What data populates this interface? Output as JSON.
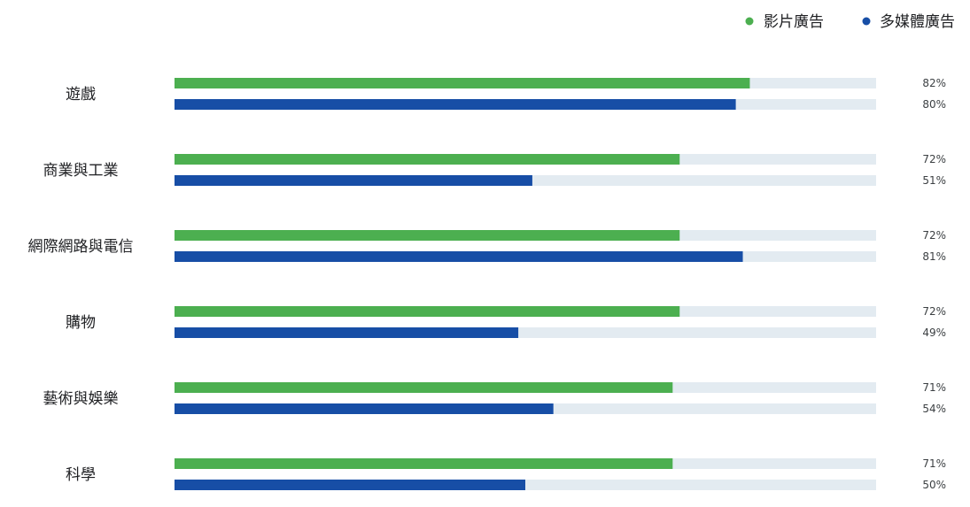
{
  "chart_data": {
    "type": "bar",
    "orientation": "horizontal",
    "categories": [
      "遊戲",
      "商業與工業",
      "網際網路與電信",
      "購物",
      "藝術與娛樂",
      "科學"
    ],
    "series": [
      {
        "name": "影片廣告",
        "color": "#4caf50",
        "values": [
          82,
          72,
          72,
          72,
          71,
          71
        ]
      },
      {
        "name": "多媒體廣告",
        "color": "#174ea6",
        "values": [
          80,
          51,
          81,
          49,
          54,
          50
        ]
      }
    ],
    "value_labels": [
      [
        "82%",
        "72%",
        "72%",
        "72%",
        "71%",
        "71%"
      ],
      [
        "80%",
        "51%",
        "81%",
        "49%",
        "54%",
        "50%"
      ]
    ],
    "xlim": [
      0,
      100
    ],
    "track_color": "#e3ebf1",
    "legend_position": "top-right",
    "grid": false
  }
}
